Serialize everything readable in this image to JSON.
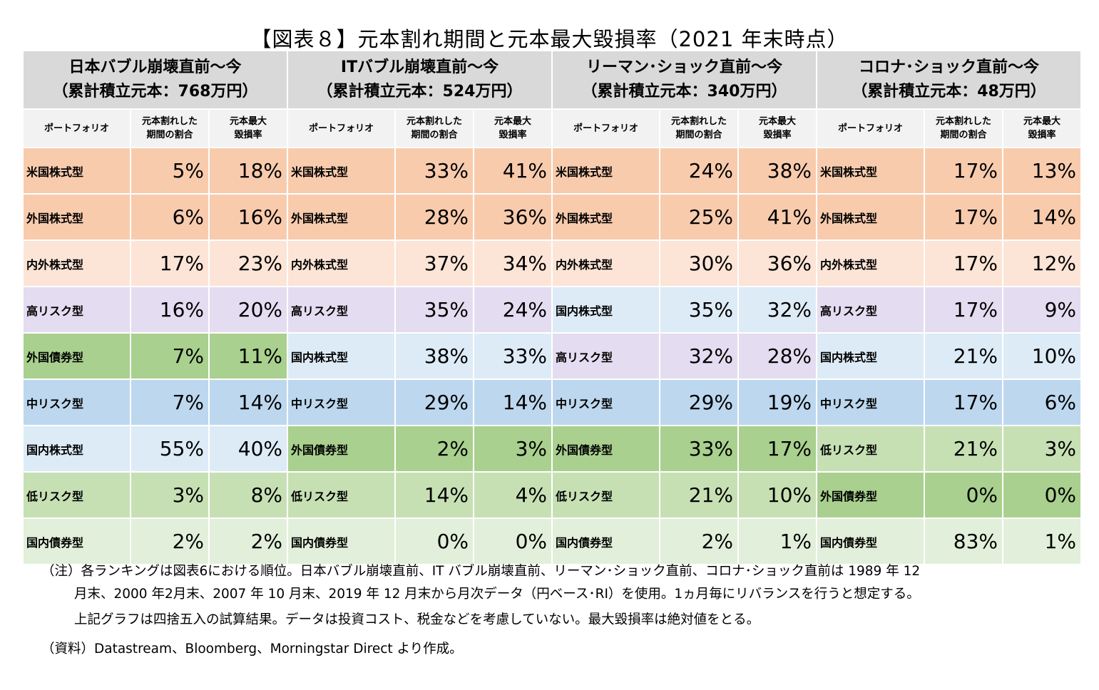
{
  "title": "【図表８】元本割れ期間と元本最大毀損率（2021 年末時点）",
  "colors": {
    "header_bg": "#d9d9d9",
    "subheader_bg": "#f2f2f2",
    "米国株式型": "#f8cbad",
    "外国株式型": "#f8cbad",
    "内外株式型": "#fce4d6",
    "高リスク型": "#e4dcf0",
    "国内株式型": "#ddebf7",
    "中リスク型": "#bdd7ee",
    "外国債券型": "#a9d08e",
    "低リスク型": "#c6e0b4",
    "国内債券型": "#e2efda"
  },
  "chart_data": {
    "type": "table",
    "column_headers": [
      "ポートフォリオ",
      "元本割れした\n期間の割合",
      "元本最大\n毀損率"
    ],
    "groups": [
      {
        "title": "日本バブル崩壊直前～今",
        "subtitle": "（累計積立元本：768万円）",
        "rows": [
          {
            "portfolio": "米国株式型",
            "period_ratio": "5%",
            "max_loss": "18%"
          },
          {
            "portfolio": "外国株式型",
            "period_ratio": "6%",
            "max_loss": "16%"
          },
          {
            "portfolio": "内外株式型",
            "period_ratio": "17%",
            "max_loss": "23%"
          },
          {
            "portfolio": "高リスク型",
            "period_ratio": "16%",
            "max_loss": "20%"
          },
          {
            "portfolio": "外国債券型",
            "period_ratio": "7%",
            "max_loss": "11%"
          },
          {
            "portfolio": "中リスク型",
            "period_ratio": "7%",
            "max_loss": "14%"
          },
          {
            "portfolio": "国内株式型",
            "period_ratio": "55%",
            "max_loss": "40%"
          },
          {
            "portfolio": "低リスク型",
            "period_ratio": "3%",
            "max_loss": "8%"
          },
          {
            "portfolio": "国内債券型",
            "period_ratio": "2%",
            "max_loss": "2%"
          }
        ]
      },
      {
        "title": "ITバブル崩壊直前～今",
        "subtitle": "（累計積立元本：524万円）",
        "rows": [
          {
            "portfolio": "米国株式型",
            "period_ratio": "33%",
            "max_loss": "41%"
          },
          {
            "portfolio": "外国株式型",
            "period_ratio": "28%",
            "max_loss": "36%"
          },
          {
            "portfolio": "内外株式型",
            "period_ratio": "37%",
            "max_loss": "34%"
          },
          {
            "portfolio": "高リスク型",
            "period_ratio": "35%",
            "max_loss": "24%"
          },
          {
            "portfolio": "国内株式型",
            "period_ratio": "38%",
            "max_loss": "33%"
          },
          {
            "portfolio": "中リスク型",
            "period_ratio": "29%",
            "max_loss": "14%"
          },
          {
            "portfolio": "外国債券型",
            "period_ratio": "2%",
            "max_loss": "3%"
          },
          {
            "portfolio": "低リスク型",
            "period_ratio": "14%",
            "max_loss": "4%"
          },
          {
            "portfolio": "国内債券型",
            "period_ratio": "0%",
            "max_loss": "0%"
          }
        ]
      },
      {
        "title": "リーマン･ショック直前～今",
        "subtitle": "（累計積立元本：340万円）",
        "rows": [
          {
            "portfolio": "米国株式型",
            "period_ratio": "24%",
            "max_loss": "38%"
          },
          {
            "portfolio": "外国株式型",
            "period_ratio": "25%",
            "max_loss": "41%"
          },
          {
            "portfolio": "内外株式型",
            "period_ratio": "30%",
            "max_loss": "36%"
          },
          {
            "portfolio": "国内株式型",
            "period_ratio": "35%",
            "max_loss": "32%"
          },
          {
            "portfolio": "高リスク型",
            "period_ratio": "32%",
            "max_loss": "28%"
          },
          {
            "portfolio": "中リスク型",
            "period_ratio": "29%",
            "max_loss": "19%"
          },
          {
            "portfolio": "外国債券型",
            "period_ratio": "33%",
            "max_loss": "17%"
          },
          {
            "portfolio": "低リスク型",
            "period_ratio": "21%",
            "max_loss": "10%"
          },
          {
            "portfolio": "国内債券型",
            "period_ratio": "2%",
            "max_loss": "1%"
          }
        ]
      },
      {
        "title": "コロナ･ショック直前～今",
        "subtitle": "（累計積立元本：48万円）",
        "rows": [
          {
            "portfolio": "米国株式型",
            "period_ratio": "17%",
            "max_loss": "13%"
          },
          {
            "portfolio": "外国株式型",
            "period_ratio": "17%",
            "max_loss": "14%"
          },
          {
            "portfolio": "内外株式型",
            "period_ratio": "17%",
            "max_loss": "12%"
          },
          {
            "portfolio": "高リスク型",
            "period_ratio": "17%",
            "max_loss": "9%"
          },
          {
            "portfolio": "国内株式型",
            "period_ratio": "21%",
            "max_loss": "10%"
          },
          {
            "portfolio": "中リスク型",
            "period_ratio": "17%",
            "max_loss": "6%"
          },
          {
            "portfolio": "低リスク型",
            "period_ratio": "21%",
            "max_loss": "3%"
          },
          {
            "portfolio": "外国債券型",
            "period_ratio": "0%",
            "max_loss": "0%"
          },
          {
            "portfolio": "国内債券型",
            "period_ratio": "83%",
            "max_loss": "1%"
          }
        ]
      }
    ]
  },
  "notes": {
    "line1": "（注）各ランキングは図表6における順位。日本バブル崩壊直前、IT バブル崩壊直前、リーマン･ショック直前、コロナ･ショック直前は 1989 年 12",
    "line2": "月末、2000 年2月末、2007 年 10 月末、2019 年 12 月末から月次データ（円ベース･RI）を使用。1ヵ月毎にリバランスを行うと想定する。",
    "line3": "上記グラフは四捨五入の試算結果。データは投資コスト、税金などを考慮していない。最大毀損率は絶対値をとる。",
    "source": "（資料）Datastream、Bloomberg、Morningstar Direct より作成。"
  }
}
